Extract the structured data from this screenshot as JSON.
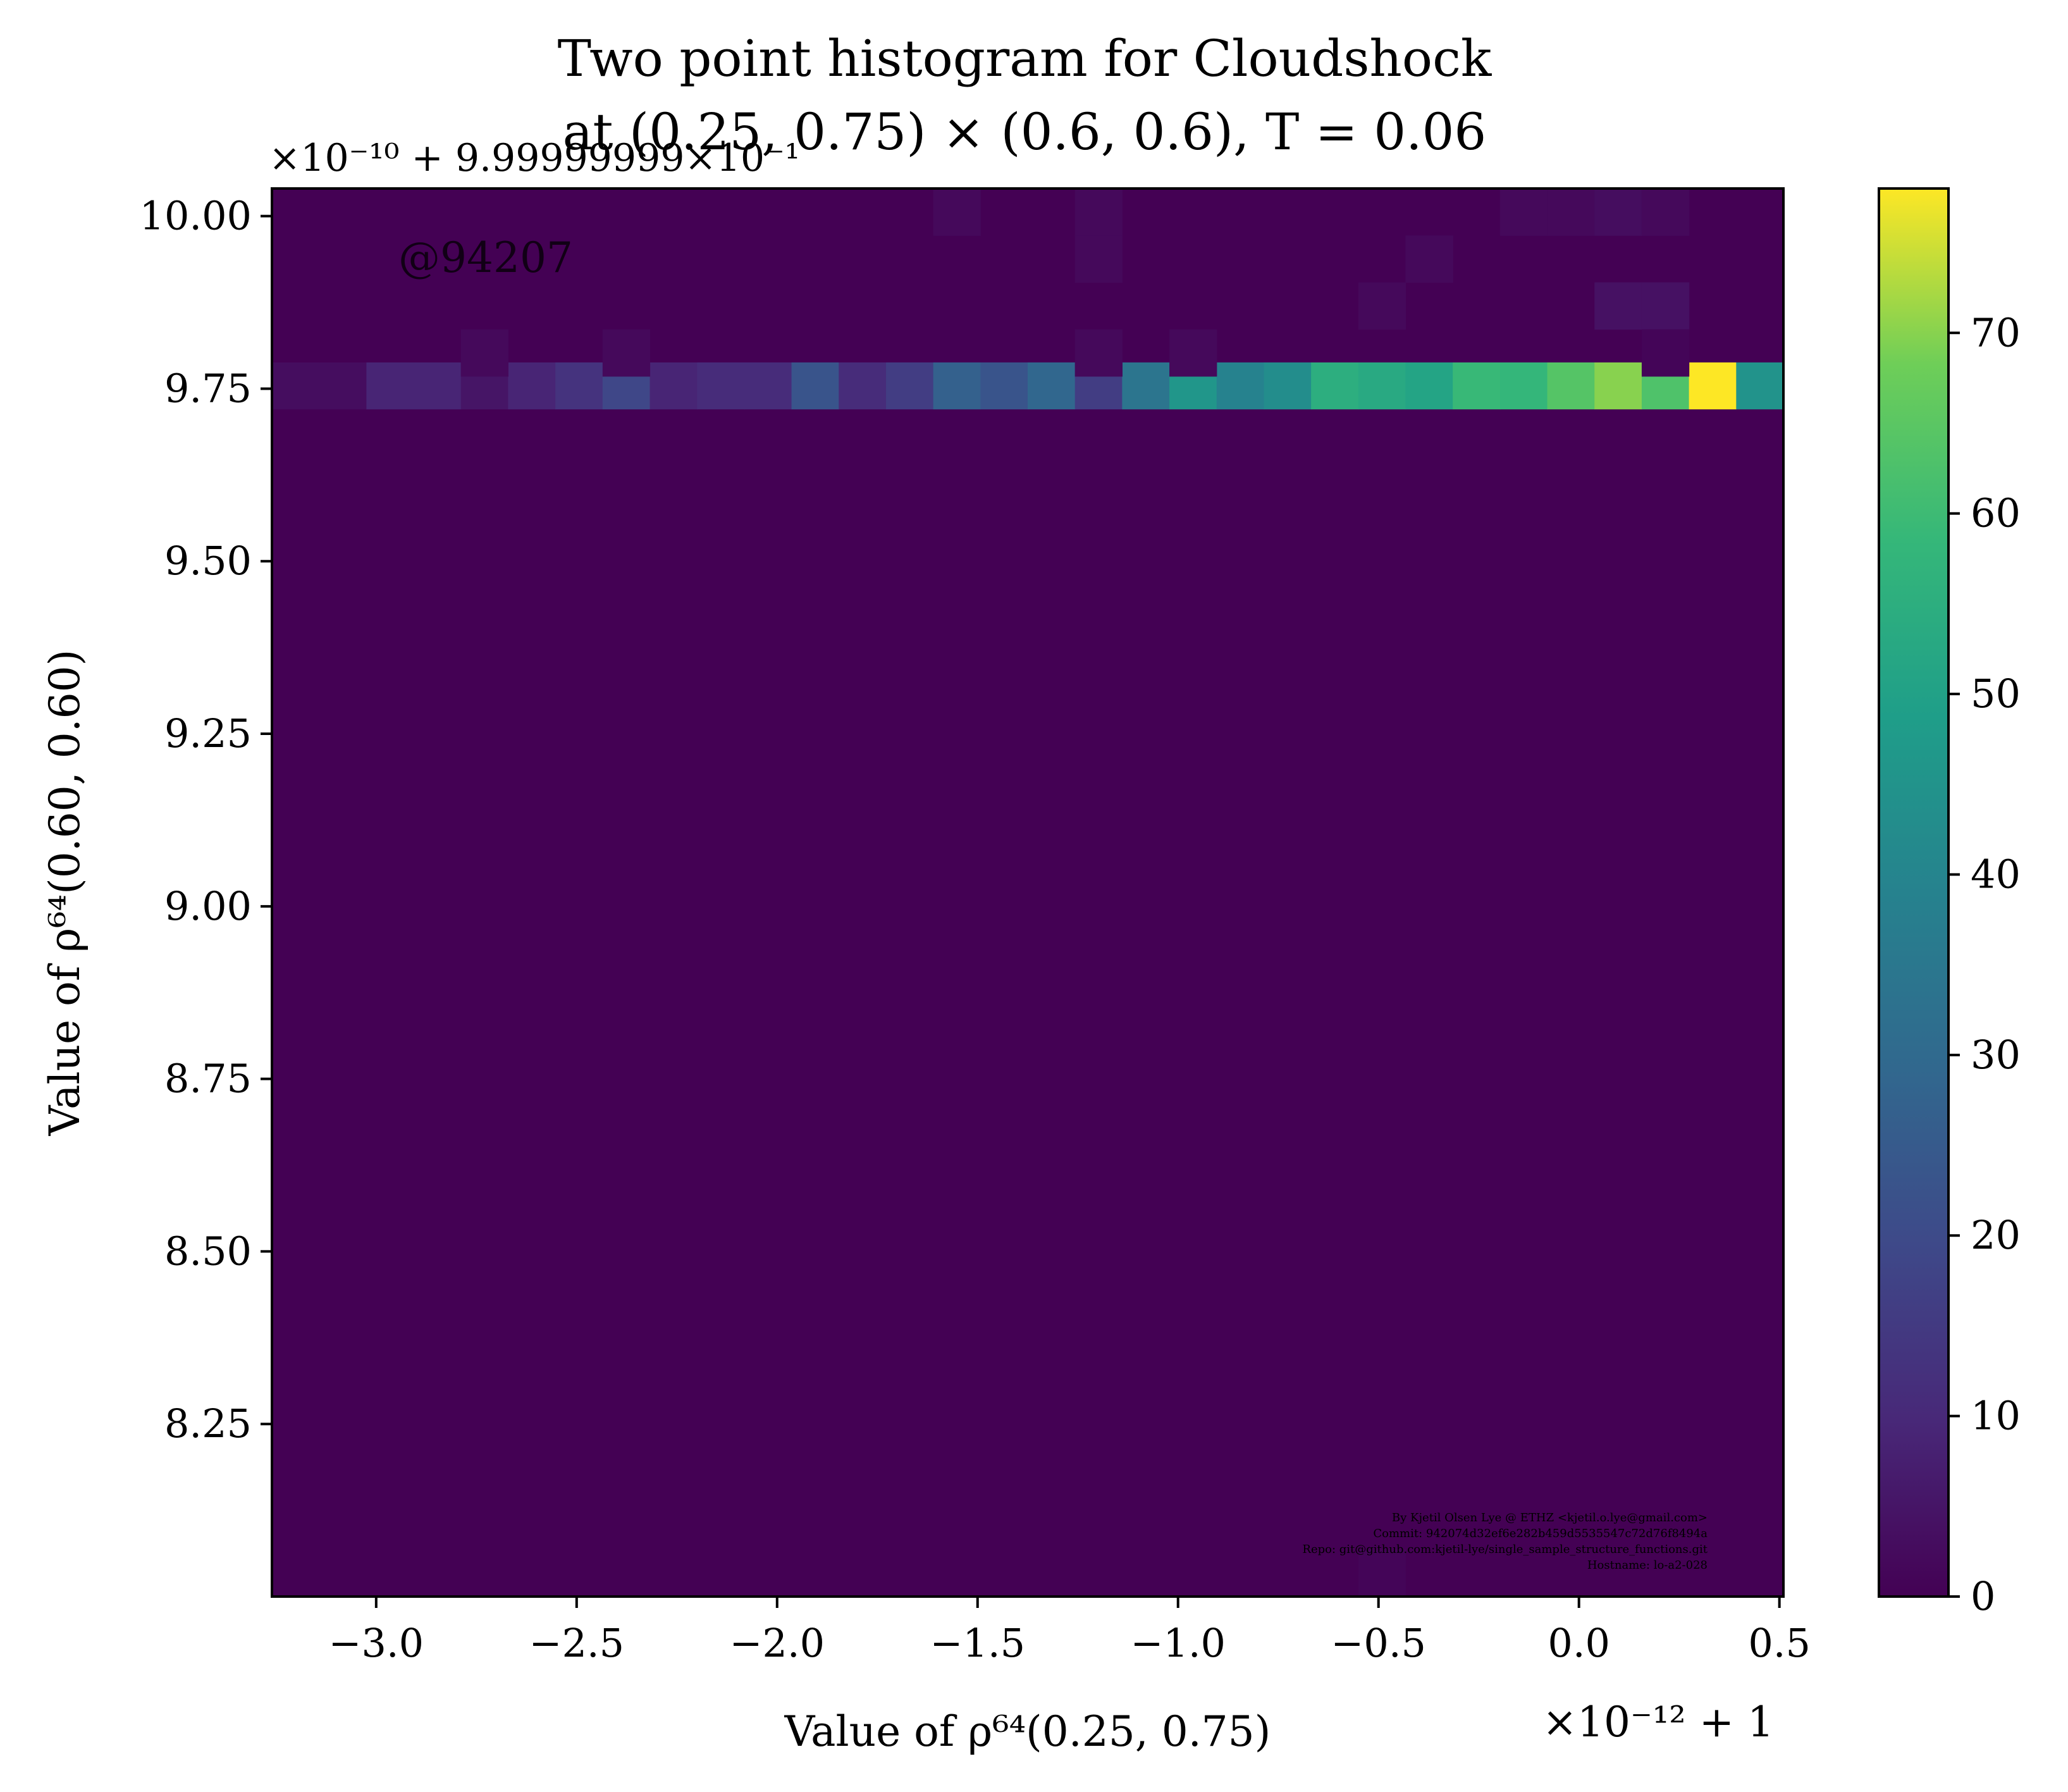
{
  "chart_data": {
    "type": "heatmap",
    "title_line1": "Two point histogram for Cloudshock",
    "title_line2": "at (0.25, 0.75) × (0.6, 0.6), T = 0.06",
    "xlabel": "Value of ρ⁶⁴(0.25, 0.75)",
    "ylabel": "Value of ρ⁶⁴(0.60, 0.60)",
    "x_offset_label": "×10⁻¹² + 1",
    "y_offset_label": "×10⁻¹⁰ + 9.99999999×10⁻¹",
    "xlim": [
      -3.26,
      0.51
    ],
    "ylim": [
      8.0,
      10.04
    ],
    "x_ticks": [
      {
        "value": -3.0,
        "label": "−3.0"
      },
      {
        "value": -2.5,
        "label": "−2.5"
      },
      {
        "value": -2.0,
        "label": "−2.0"
      },
      {
        "value": -1.5,
        "label": "−1.5"
      },
      {
        "value": -1.0,
        "label": "−1.0"
      },
      {
        "value": -0.5,
        "label": "−0.5"
      },
      {
        "value": 0.0,
        "label": "0.0"
      },
      {
        "value": 0.5,
        "label": "0.5"
      }
    ],
    "y_ticks": [
      {
        "value": 8.25,
        "label": "8.25"
      },
      {
        "value": 8.5,
        "label": "8.50"
      },
      {
        "value": 8.75,
        "label": "8.75"
      },
      {
        "value": 9.0,
        "label": "9.00"
      },
      {
        "value": 9.25,
        "label": "9.25"
      },
      {
        "value": 9.5,
        "label": "9.50"
      },
      {
        "value": 9.75,
        "label": "9.75"
      },
      {
        "value": 10.0,
        "label": "10.00"
      }
    ],
    "colorbar": {
      "min": 0,
      "max": 78,
      "ticks": [
        {
          "value": 0,
          "label": "0"
        },
        {
          "value": 10,
          "label": "10"
        },
        {
          "value": 20,
          "label": "20"
        },
        {
          "value": 30,
          "label": "30"
        },
        {
          "value": 40,
          "label": "40"
        },
        {
          "value": 50,
          "label": "50"
        },
        {
          "value": 60,
          "label": "60"
        },
        {
          "value": 70,
          "label": "70"
        }
      ],
      "colormap": "viridis"
    },
    "bins": {
      "nx": 32,
      "ny": 30,
      "x_range": [
        -3.26,
        0.51
      ],
      "y_range": [
        8.0,
        10.04
      ],
      "main_row_y_bin": [
        9.72,
        9.788
      ],
      "main_row_counts": [
        3,
        3,
        9,
        9,
        5,
        9,
        13,
        19,
        9,
        11,
        11,
        23,
        11,
        16,
        27,
        23,
        29,
        16,
        34,
        46,
        39,
        43,
        55,
        53,
        51,
        59,
        58,
        64,
        70,
        63,
        78,
        45
      ],
      "sparse_cells": [
        {
          "x_bin": 14,
          "y_bin": 29,
          "count": 2
        },
        {
          "x_bin": 17,
          "y_bin": 29,
          "count": 2
        },
        {
          "x_bin": 17,
          "y_bin": 28,
          "count": 2
        },
        {
          "x_bin": 17,
          "y_bin": 26,
          "count": 2
        },
        {
          "x_bin": 26,
          "y_bin": 29,
          "count": 2
        },
        {
          "x_bin": 27,
          "y_bin": 29,
          "count": 2
        },
        {
          "x_bin": 28,
          "y_bin": 29,
          "count": 3
        },
        {
          "x_bin": 29,
          "y_bin": 29,
          "count": 2
        },
        {
          "x_bin": 24,
          "y_bin": 28,
          "count": 2
        },
        {
          "x_bin": 23,
          "y_bin": 27,
          "count": 2
        },
        {
          "x_bin": 28,
          "y_bin": 27,
          "count": 4
        },
        {
          "x_bin": 29,
          "y_bin": 27,
          "count": 4
        },
        {
          "x_bin": 4,
          "y_bin": 26,
          "count": 2
        },
        {
          "x_bin": 7,
          "y_bin": 26,
          "count": 2
        },
        {
          "x_bin": 19,
          "y_bin": 26,
          "count": 2
        },
        {
          "x_bin": 29,
          "y_bin": 26,
          "count": 1
        },
        {
          "x_bin": 23,
          "y_bin": 0,
          "count": 1
        }
      ]
    }
  },
  "annotations": {
    "watermark": "@94207",
    "credits": [
      "By Kjetil Olsen Lye @ ETHZ <kjetil.o.lye@gmail.com>",
      "Commit: 942074d32ef6e282b459d5535547c72d76f8494a",
      "Repo: git@github.com:kjetil-lye/single_sample_structure_functions.git",
      "Hostname: lo-a2-028"
    ]
  }
}
